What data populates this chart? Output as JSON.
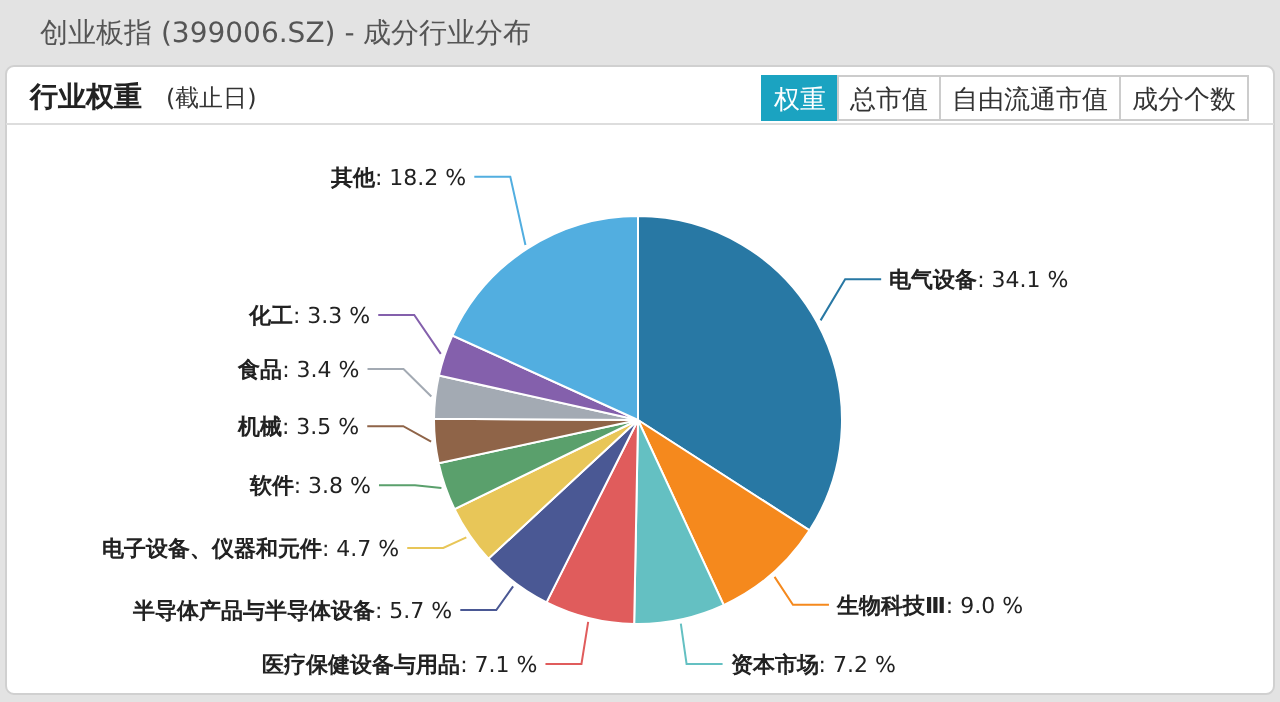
{
  "chart_data": {
    "type": "pie",
    "title": "创业板指 (399006.SZ) - 成分行业分布",
    "subtitle": "行业权重",
    "annotations": [
      "(截止日)",
      "权重",
      "总市值",
      "自由流通市值",
      "成分个数"
    ],
    "categories": [
      "电气设备",
      "生物科技Ⅲ",
      "资本市场",
      "医疗保健设备与用品",
      "半导体产品与半导体设备",
      "电子设备、仪器和元件",
      "软件",
      "机械",
      "食品",
      "化工",
      "其他"
    ],
    "values": [
      34.1,
      9.0,
      7.2,
      7.1,
      5.7,
      4.7,
      3.8,
      3.5,
      3.4,
      3.3,
      18.2
    ],
    "colors": [
      "#2878a4",
      "#f5891d",
      "#64c0c2",
      "#e05c5c",
      "#4a5894",
      "#e8c658",
      "#5aa06c",
      "#8f6448",
      "#a3aab3",
      "#8460ac",
      "#52aee0"
    ],
    "value_labels": [
      ": 34.1 %",
      ": 9.0 %",
      ": 7.2 %",
      ": 7.1 %",
      ": 5.7 %",
      ": 4.7 %",
      ": 3.8 %",
      ": 3.5 %",
      ": 3.4 %",
      ": 3.3 %",
      ": 18.2 %"
    ]
  }
}
